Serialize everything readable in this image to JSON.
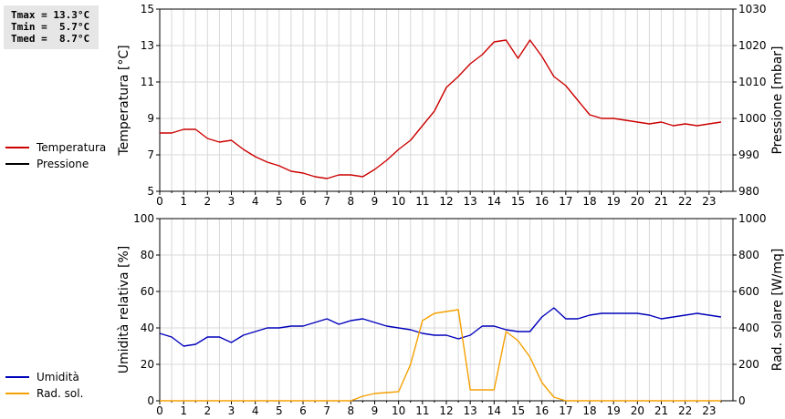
{
  "stats": {
    "tmax": "Tmax = 13.3°C",
    "tmin": "Tmin =  5.7°C",
    "tmed": "Tmed =  8.7°C"
  },
  "colors": {
    "temperature": "#cc0000",
    "pressure": "#000000",
    "humidity": "#0000bb",
    "radiation": "#f5a000"
  },
  "chart_data": [
    {
      "type": "line",
      "xlim": [
        0,
        24
      ],
      "xticks": [
        "0",
        "1",
        "2",
        "3",
        "4",
        "5",
        "6",
        "7",
        "8",
        "9",
        "10",
        "11",
        "12",
        "13",
        "14",
        "15",
        "16",
        "17",
        "18",
        "19",
        "20",
        "21",
        "22",
        "23"
      ],
      "ylabel": "Temperatura [°C]",
      "ylim": [
        5,
        15
      ],
      "yticks": [
        "5",
        "7",
        "9",
        "11",
        "13",
        "15"
      ],
      "y2label": "Pressione [mbar]",
      "y2lim": [
        980,
        1030
      ],
      "y2ticks": [
        "980",
        "990",
        "1000",
        "1010",
        "1020",
        "1030"
      ],
      "grid": true,
      "legend_position": "left",
      "series": [
        {
          "name": "Temperatura",
          "axis": "left",
          "x": [
            0,
            0.5,
            1,
            1.5,
            2,
            2.5,
            3,
            3.5,
            4,
            4.5,
            5,
            5.5,
            6,
            6.5,
            7,
            7.5,
            8,
            8.5,
            9,
            9.5,
            10,
            10.5,
            11,
            11.5,
            12,
            12.5,
            13,
            13.5,
            14,
            14.5,
            15,
            15.5,
            16,
            16.5,
            17,
            17.5,
            18,
            18.5,
            19,
            19.5,
            20,
            20.5,
            21,
            21.5,
            22,
            22.5,
            23,
            23.5
          ],
          "values": [
            8.2,
            8.2,
            8.4,
            8.4,
            7.9,
            7.7,
            7.8,
            7.3,
            6.9,
            6.6,
            6.4,
            6.1,
            6.0,
            5.8,
            5.7,
            5.9,
            5.9,
            5.8,
            6.2,
            6.7,
            7.3,
            7.8,
            8.6,
            9.4,
            10.7,
            11.3,
            12.0,
            12.5,
            13.2,
            13.3,
            12.3,
            13.3,
            12.4,
            11.3,
            10.8,
            10.0,
            9.2,
            9.0,
            9.0,
            8.9,
            8.8,
            8.7,
            8.8,
            8.6,
            8.7,
            8.6,
            8.7,
            8.8
          ]
        },
        {
          "name": "Pressione",
          "axis": "right",
          "x": [],
          "values": []
        }
      ]
    },
    {
      "type": "line",
      "xlim": [
        0,
        24
      ],
      "xticks": [
        "0",
        "1",
        "2",
        "3",
        "4",
        "5",
        "6",
        "7",
        "8",
        "9",
        "10",
        "11",
        "12",
        "13",
        "14",
        "15",
        "16",
        "17",
        "18",
        "19",
        "20",
        "21",
        "22",
        "23"
      ],
      "ylabel": "Umidità relativa [%]",
      "ylim": [
        0,
        100
      ],
      "yticks": [
        "0",
        "20",
        "40",
        "60",
        "80",
        "100"
      ],
      "y2label": "Rad. solare [W/mq]",
      "y2lim": [
        0,
        1000
      ],
      "y2ticks": [
        "0",
        "200",
        "400",
        "600",
        "800",
        "1000"
      ],
      "grid": true,
      "legend_position": "left",
      "series": [
        {
          "name": "Umidità",
          "axis": "left",
          "x": [
            0,
            0.5,
            1,
            1.5,
            2,
            2.5,
            3,
            3.5,
            4,
            4.5,
            5,
            5.5,
            6,
            6.5,
            7,
            7.5,
            8,
            8.5,
            9,
            9.5,
            10,
            10.5,
            11,
            11.5,
            12,
            12.5,
            13,
            13.5,
            14,
            14.5,
            15,
            15.5,
            16,
            16.5,
            17,
            17.5,
            18,
            18.5,
            19,
            19.5,
            20,
            20.5,
            21,
            21.5,
            22,
            22.5,
            23,
            23.5
          ],
          "values": [
            37,
            35,
            30,
            31,
            35,
            35,
            32,
            36,
            38,
            40,
            40,
            41,
            41,
            43,
            45,
            42,
            44,
            45,
            43,
            41,
            40,
            39,
            37,
            36,
            36,
            34,
            36,
            41,
            41,
            39,
            38,
            38,
            46,
            51,
            45,
            45,
            47,
            48,
            48,
            48,
            48,
            47,
            45,
            46,
            47,
            48,
            47,
            46
          ]
        },
        {
          "name": "Rad. sol.",
          "axis": "right",
          "x": [
            0,
            1,
            2,
            3,
            4,
            5,
            6,
            7,
            8,
            8.5,
            9,
            9.5,
            10,
            10.5,
            11,
            11.5,
            12,
            12.5,
            13,
            13.5,
            14,
            14.5,
            15,
            15.5,
            16,
            16.5,
            17,
            18,
            19,
            20,
            21,
            22,
            23,
            23.5
          ],
          "values": [
            0,
            0,
            0,
            0,
            0,
            0,
            0,
            0,
            0,
            25,
            40,
            45,
            50,
            200,
            440,
            480,
            490,
            500,
            60,
            60,
            60,
            380,
            330,
            240,
            100,
            20,
            0,
            0,
            0,
            0,
            0,
            0,
            0,
            0
          ]
        }
      ]
    }
  ]
}
